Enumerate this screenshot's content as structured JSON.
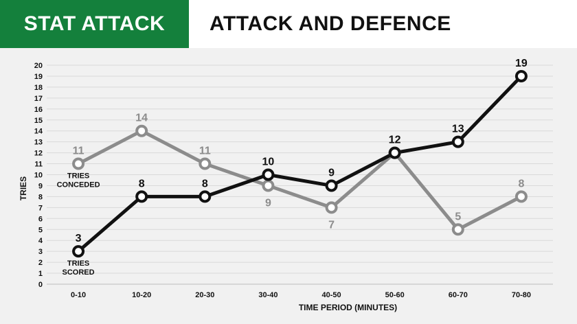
{
  "header": {
    "brand": "STAT ATTACK",
    "title": "ATTACK AND DEFENCE"
  },
  "colors": {
    "brand_bg": "#14803c",
    "scored": "#111111",
    "conceded": "#8c8c8c",
    "grid": "#d9d9d9"
  },
  "chart_data": {
    "type": "line",
    "title": "ATTACK AND DEFENCE",
    "xlabel": "TIME PERIOD (MINUTES)",
    "ylabel": "TRIES",
    "ylim": [
      0,
      20
    ],
    "yticks": [
      0,
      1,
      2,
      3,
      4,
      5,
      6,
      7,
      8,
      9,
      10,
      11,
      12,
      13,
      14,
      15,
      16,
      17,
      18,
      19,
      20
    ],
    "grid": true,
    "categories": [
      "0-10",
      "10-20",
      "20-30",
      "30-40",
      "40-50",
      "50-60",
      "60-70",
      "70-80"
    ],
    "series": [
      {
        "name": "TRIES CONCEDED",
        "color": "#8c8c8c",
        "values": [
          11,
          14,
          11,
          9,
          7,
          12,
          5,
          8
        ],
        "label_pos": [
          "above",
          "above",
          "above",
          "below",
          "below",
          "above",
          "above",
          "above"
        ]
      },
      {
        "name": "TRIES SCORED",
        "color": "#111111",
        "values": [
          3,
          8,
          8,
          10,
          9,
          12,
          13,
          19
        ],
        "label_pos": [
          "above",
          "above",
          "above",
          "above",
          "above",
          "above",
          "above",
          "above"
        ]
      }
    ],
    "annotations": [
      {
        "series": "TRIES CONCEDED",
        "lines": [
          "TRIES",
          "CONCEDED"
        ]
      },
      {
        "series": "TRIES SCORED",
        "lines": [
          "TRIES",
          "SCORED"
        ]
      }
    ]
  }
}
